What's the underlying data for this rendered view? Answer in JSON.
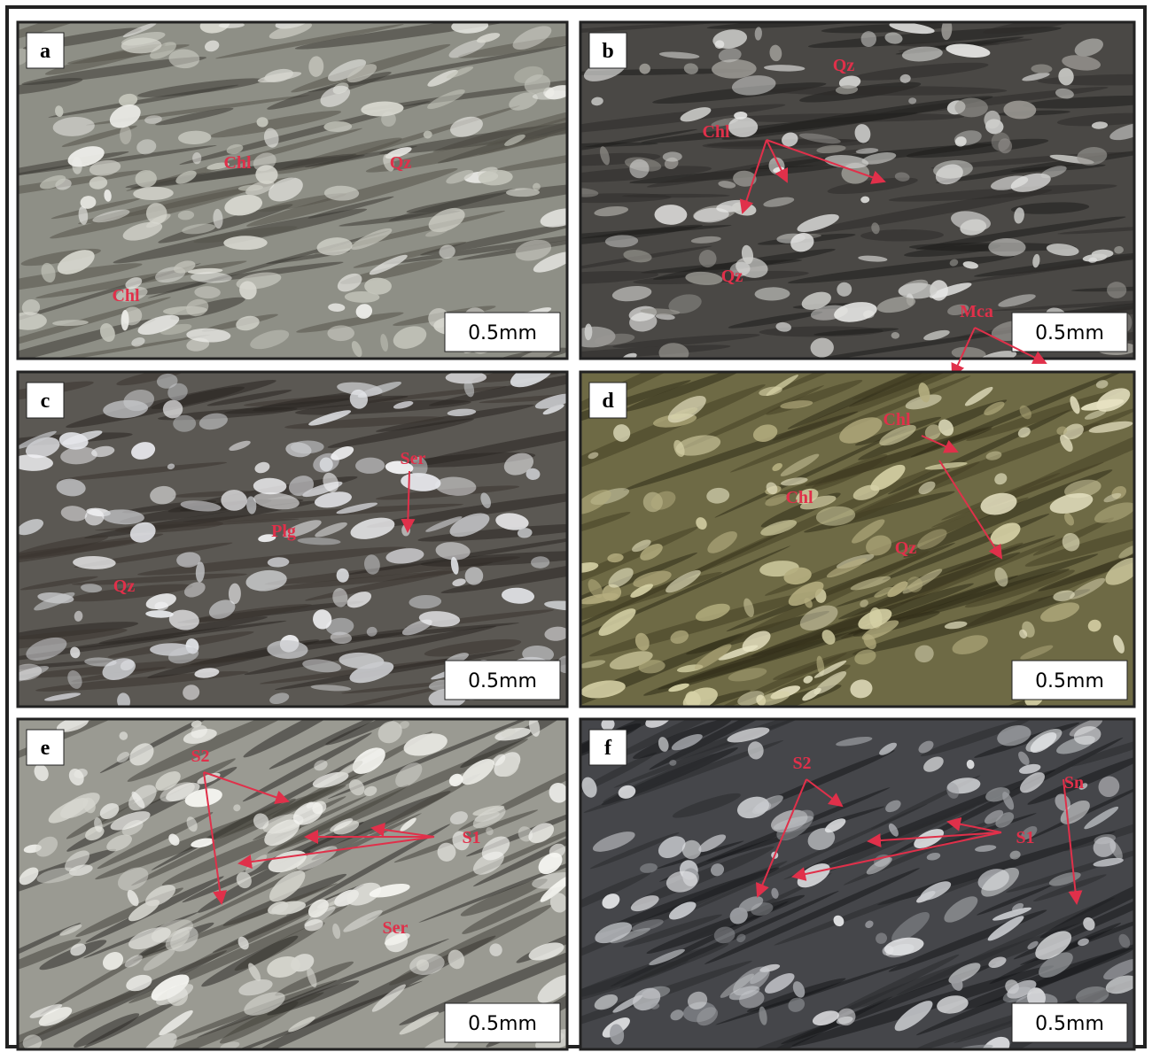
{
  "panels": [
    {
      "label": "a",
      "scale": "0.5mm",
      "annotations": [
        "Chl",
        "Qz",
        "Chl"
      ]
    },
    {
      "label": "b",
      "scale": "0.5mm",
      "annotations": [
        "Qz",
        "Chl",
        "Qz",
        "Mca"
      ]
    },
    {
      "label": "c",
      "scale": "0.5mm",
      "annotations": [
        "Ser",
        "Plg",
        "Qz"
      ]
    },
    {
      "label": "d",
      "scale": "0.5mm",
      "annotations": [
        "Chl",
        "Chl",
        "Qz"
      ]
    },
    {
      "label": "e",
      "scale": "0.5mm",
      "annotations": [
        "S2",
        "S1",
        "Ser"
      ]
    },
    {
      "label": "f",
      "scale": "0.5mm",
      "annotations": [
        "S2",
        "Sn",
        "S1"
      ]
    }
  ]
}
